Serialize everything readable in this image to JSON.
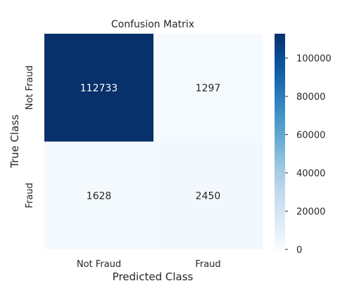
{
  "chart_data": {
    "type": "heatmap",
    "title": "Confusion Matrix",
    "xlabel": "Predicted Class",
    "ylabel": "True Class",
    "x_categories": [
      "Not Fraud",
      "Fraud"
    ],
    "y_categories": [
      "Not Fraud",
      "Fraud"
    ],
    "values": [
      [
        112733,
        1297
      ],
      [
        1628,
        2450
      ]
    ],
    "cell_labels": [
      [
        "112733",
        "1297"
      ],
      [
        "1628",
        "2450"
      ]
    ],
    "colorbar": {
      "min": 0,
      "max": 112733,
      "ticks": [
        0,
        20000,
        40000,
        60000,
        80000,
        100000
      ],
      "tick_labels": [
        "0",
        "20000",
        "40000",
        "60000",
        "80000",
        "100000"
      ],
      "colormap": "Blues"
    },
    "colors": {
      "low": "#f7fbff",
      "high": "#08306b",
      "text_on_dark": "#ffffff",
      "text_on_light": "#262626"
    }
  }
}
